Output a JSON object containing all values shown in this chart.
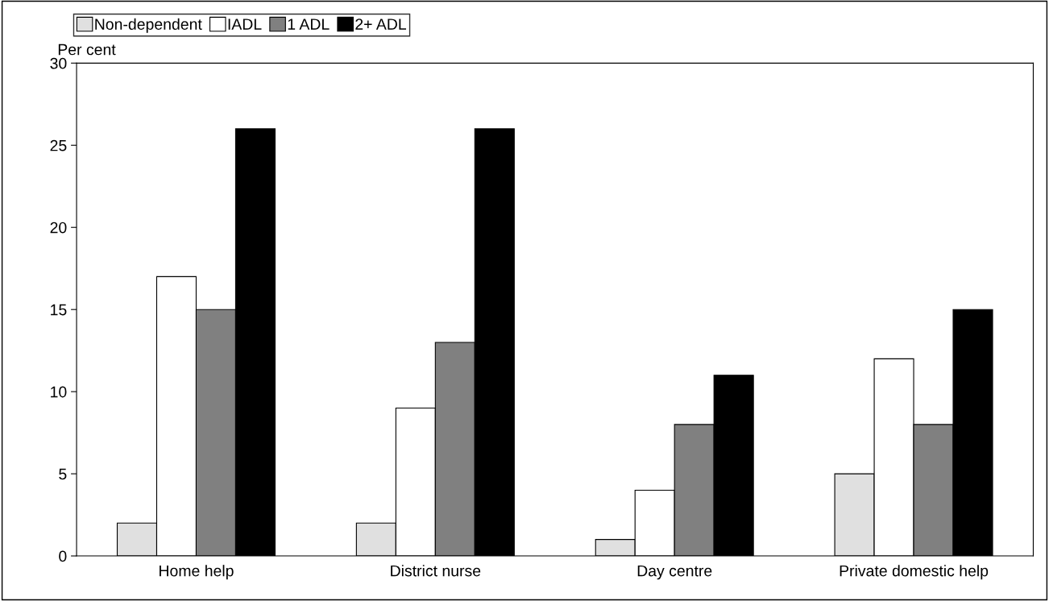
{
  "chart_data": {
    "type": "bar",
    "ylabel": "Per cent",
    "categories": [
      "Home help",
      "District nurse",
      "Day centre",
      "Private domestic help"
    ],
    "series": [
      {
        "name": "Non-dependent",
        "color": "#e0e0e0",
        "values": [
          2,
          2,
          1,
          5
        ]
      },
      {
        "name": "IADL",
        "color": "#ffffff",
        "values": [
          17,
          9,
          4,
          12
        ]
      },
      {
        "name": "1 ADL",
        "color": "#808080",
        "values": [
          15,
          13,
          8,
          8
        ]
      },
      {
        "name": "2+ ADL",
        "color": "#000000",
        "values": [
          26,
          26,
          11,
          15
        ]
      }
    ],
    "ylim": [
      0,
      30
    ],
    "yticks": [
      0,
      5,
      10,
      15,
      20,
      25,
      30
    ],
    "grid": false,
    "legend": "top left"
  }
}
